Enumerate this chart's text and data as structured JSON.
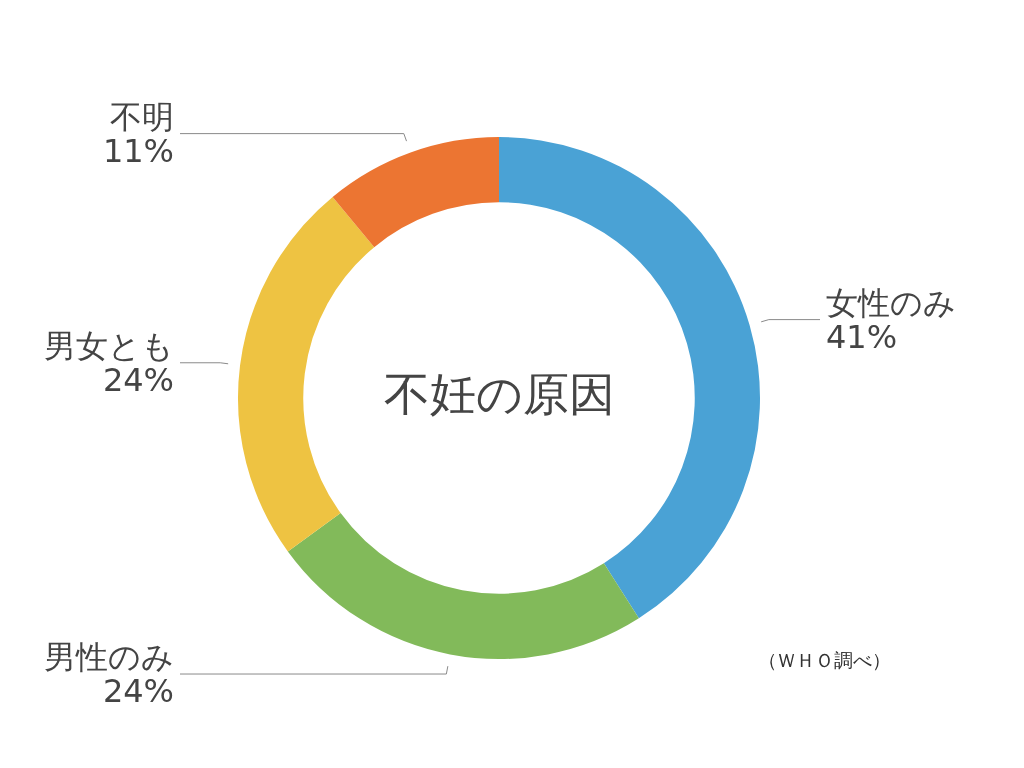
{
  "chart_data": {
    "type": "donut",
    "title": "不妊の原因",
    "categories": [
      "女性のみ",
      "男性のみ",
      "男女とも",
      "不明"
    ],
    "values": [
      41,
      24,
      24,
      11
    ],
    "colors": [
      "#4aa2d5",
      "#82ba5a",
      "#eec342",
      "#ec7532"
    ],
    "value_labels": [
      "41%",
      "24%",
      "24%",
      "11%"
    ],
    "annotations": [
      "（ＷＨＯ調べ）"
    ]
  }
}
